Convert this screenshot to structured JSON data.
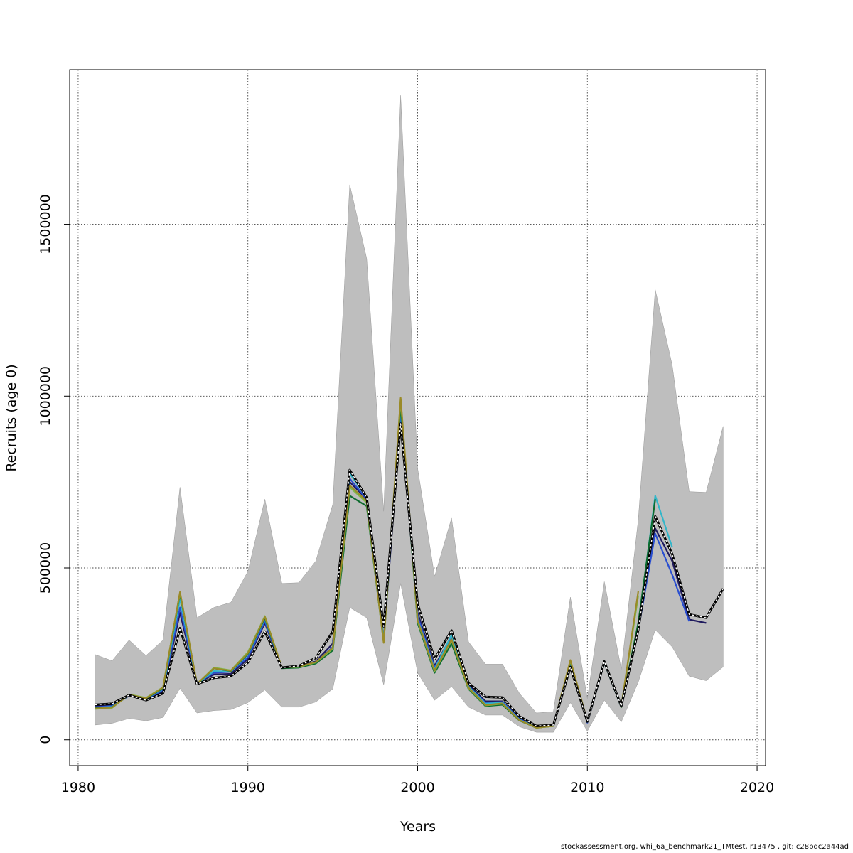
{
  "chart_data": {
    "type": "line",
    "xlabel": "Years",
    "ylabel": "Recruits (age 0)",
    "xlim": [
      1979.5,
      2020.5
    ],
    "ylim": [
      -75000,
      1950000
    ],
    "xticks": [
      1980,
      1990,
      2000,
      2010,
      2020
    ],
    "yticks": [
      0,
      500000,
      1000000,
      1500000
    ],
    "grid": true,
    "legend": "none",
    "band": {
      "color": "#bebebe",
      "x": [
        1981,
        1982,
        1983,
        1984,
        1985,
        1986,
        1987,
        1988,
        1989,
        1990,
        1991,
        1992,
        1993,
        1994,
        1995,
        1996,
        1997,
        1998,
        1999,
        2000,
        2001,
        2002,
        2003,
        2004,
        2005,
        2006,
        2007,
        2008,
        2009,
        2010,
        2011,
        2012,
        2013,
        2014,
        2015,
        2016,
        2017,
        2018
      ],
      "upper": [
        248000,
        230000,
        290000,
        245000,
        290000,
        735000,
        355000,
        385000,
        400000,
        490000,
        700000,
        455000,
        457000,
        520000,
        685000,
        1615000,
        1400000,
        665000,
        1875000,
        790000,
        475000,
        645000,
        285000,
        220000,
        220000,
        135000,
        78000,
        82000,
        415000,
        120000,
        460000,
        205000,
        640000,
        1310000,
        1090000,
        722000,
        720000,
        912000
      ],
      "lower": [
        43000,
        48000,
        62000,
        55000,
        65000,
        150000,
        78000,
        85000,
        88000,
        108000,
        145000,
        95000,
        95000,
        110000,
        148000,
        385000,
        355000,
        160000,
        455000,
        195000,
        115000,
        155000,
        95000,
        72000,
        72000,
        38000,
        22000,
        22000,
        108000,
        25000,
        115000,
        52000,
        168000,
        320000,
        270000,
        185000,
        172000,
        212000
      ]
    },
    "series": [
      {
        "color": "#1f1a5e",
        "dash": false,
        "x": [
          1981,
          1982,
          1983,
          1984,
          1985,
          1986,
          1987,
          1988,
          1989,
          1990,
          1991,
          1992,
          1993,
          1994,
          1995,
          1996,
          1997,
          1998,
          1999,
          2000,
          2001,
          2002,
          2003,
          2004,
          2005,
          2006,
          2007,
          2008,
          2009,
          2010,
          2011,
          2012,
          2013,
          2014,
          2015,
          2016,
          2017
        ],
        "y": [
          98000,
          100000,
          128000,
          117000,
          140000,
          370000,
          165000,
          190000,
          192000,
          235000,
          340000,
          210000,
          215000,
          228000,
          280000,
          750000,
          700000,
          290000,
          930000,
          370000,
          215000,
          300000,
          160000,
          112000,
          112000,
          62000,
          38000,
          40000,
          222000,
          50000,
          228000,
          95000,
          330000,
          615000,
          520000,
          350000,
          340000
        ]
      },
      {
        "color": "#2a4fd0",
        "dash": false,
        "x": [
          1981,
          1982,
          1983,
          1984,
          1985,
          1986,
          1987,
          1988,
          1989,
          1990,
          1991,
          1992,
          1993,
          1994,
          1995,
          1996,
          1997,
          1998,
          1999,
          2000,
          2001,
          2002,
          2003,
          2004,
          2005,
          2006,
          2007,
          2008,
          2009,
          2010,
          2011,
          2012,
          2013,
          2014,
          2015,
          2016
        ],
        "y": [
          95000,
          98000,
          128000,
          118000,
          145000,
          385000,
          165000,
          195000,
          198000,
          240000,
          345000,
          210000,
          213000,
          225000,
          270000,
          760000,
          700000,
          290000,
          950000,
          360000,
          210000,
          300000,
          155000,
          108000,
          110000,
          60000,
          37000,
          40000,
          220000,
          50000,
          225000,
          95000,
          320000,
          600000,
          480000,
          345000
        ]
      },
      {
        "color": "#33b6c9",
        "dash": false,
        "x": [
          1981,
          1982,
          1983,
          1984,
          1985,
          1986,
          1987,
          1988,
          1989,
          1990,
          1991,
          1992,
          1993,
          1994,
          1995,
          1996,
          1997,
          1998,
          1999,
          2000,
          2001,
          2002,
          2003,
          2004,
          2005,
          2006,
          2007,
          2008,
          2009,
          2010,
          2011,
          2012,
          2013,
          2014,
          2015
        ],
        "y": [
          93000,
          96000,
          130000,
          120000,
          148000,
          410000,
          163000,
          200000,
          198000,
          248000,
          352000,
          210000,
          212000,
          225000,
          268000,
          775000,
          705000,
          288000,
          970000,
          350000,
          205000,
          305000,
          155000,
          105000,
          108000,
          58000,
          36000,
          40000,
          225000,
          52000,
          228000,
          96000,
          330000,
          710000,
          560000
        ]
      },
      {
        "color": "#0d6b2e",
        "dash": false,
        "x": [
          1981,
          1982,
          1983,
          1984,
          1985,
          1986,
          1987,
          1988,
          1989,
          1990,
          1991,
          1992,
          1993,
          1994,
          1995,
          1996,
          1997,
          1998,
          1999,
          2000,
          2001,
          2002,
          2003,
          2004,
          2005,
          2006,
          2007,
          2008,
          2009,
          2010,
          2011,
          2012,
          2013,
          2014
        ],
        "y": [
          92000,
          95000,
          130000,
          120000,
          150000,
          425000,
          162000,
          208000,
          200000,
          250000,
          355000,
          208000,
          210000,
          222000,
          260000,
          710000,
          680000,
          285000,
          975000,
          340000,
          195000,
          280000,
          148000,
          98000,
          102000,
          56000,
          35000,
          40000,
          228000,
          52000,
          225000,
          95000,
          340000,
          700000
        ]
      },
      {
        "color": "#7fb84a",
        "dash": false,
        "x": [
          1981,
          1982,
          1983,
          1984,
          1985,
          1986,
          1987,
          1988,
          1989,
          1990,
          1991,
          1992,
          1993,
          1994,
          1995,
          1996,
          1997,
          1998,
          1999,
          2000,
          2001,
          2002,
          2003,
          2004,
          2005,
          2006,
          2007,
          2008,
          2009,
          2010,
          2011,
          2012,
          2013
        ],
        "y": [
          90000,
          93000,
          132000,
          122000,
          153000,
          428000,
          162000,
          210000,
          202000,
          255000,
          360000,
          210000,
          212000,
          225000,
          265000,
          735000,
          690000,
          283000,
          990000,
          345000,
          200000,
          290000,
          150000,
          100000,
          105000,
          57000,
          35000,
          40000,
          230000,
          53000,
          228000,
          97000,
          420000
        ]
      },
      {
        "color": "#9a8a28",
        "dash": false,
        "x": [
          1981,
          1982,
          1983,
          1984,
          1985,
          1986,
          1987,
          1988,
          1989,
          1990,
          1991,
          1992,
          1993,
          1994,
          1995,
          1996,
          1997,
          1998,
          1999,
          2000,
          2001,
          2002,
          2003,
          2004,
          2005,
          2006,
          2007,
          2008,
          2009,
          2010,
          2011,
          2012,
          2013
        ],
        "y": [
          91000,
          94000,
          131000,
          121000,
          152000,
          430000,
          163000,
          208000,
          201000,
          252000,
          358000,
          211000,
          213000,
          226000,
          268000,
          740000,
          695000,
          282000,
          995000,
          348000,
          202000,
          292000,
          152000,
          101000,
          106000,
          57000,
          35000,
          40000,
          232000,
          54000,
          227000,
          96000,
          432000
        ]
      },
      {
        "color": "#000000",
        "dash": true,
        "x": [
          1981,
          1982,
          1983,
          1984,
          1985,
          1986,
          1987,
          1988,
          1989,
          1990,
          1991,
          1992,
          1993,
          1994,
          1995,
          1996,
          1997,
          1998,
          1999,
          2000,
          2001,
          2002,
          2003,
          2004,
          2005,
          2006,
          2007,
          2008,
          2009,
          2010,
          2011,
          2012,
          2013,
          2014,
          2015,
          2016,
          2017,
          2018
        ],
        "y": [
          102000,
          105000,
          130000,
          115000,
          135000,
          325000,
          162000,
          180000,
          185000,
          225000,
          315000,
          210000,
          215000,
          238000,
          315000,
          785000,
          705000,
          330000,
          920000,
          395000,
          235000,
          318000,
          165000,
          125000,
          123000,
          68000,
          40000,
          43000,
          212000,
          53000,
          228000,
          98000,
          320000,
          650000,
          540000,
          365000,
          355000,
          440000
        ]
      }
    ]
  },
  "footer": "stockassessment.org, whi_6a_benchmark21_TMtest, r13475 , git: c28bdc2a44ad"
}
